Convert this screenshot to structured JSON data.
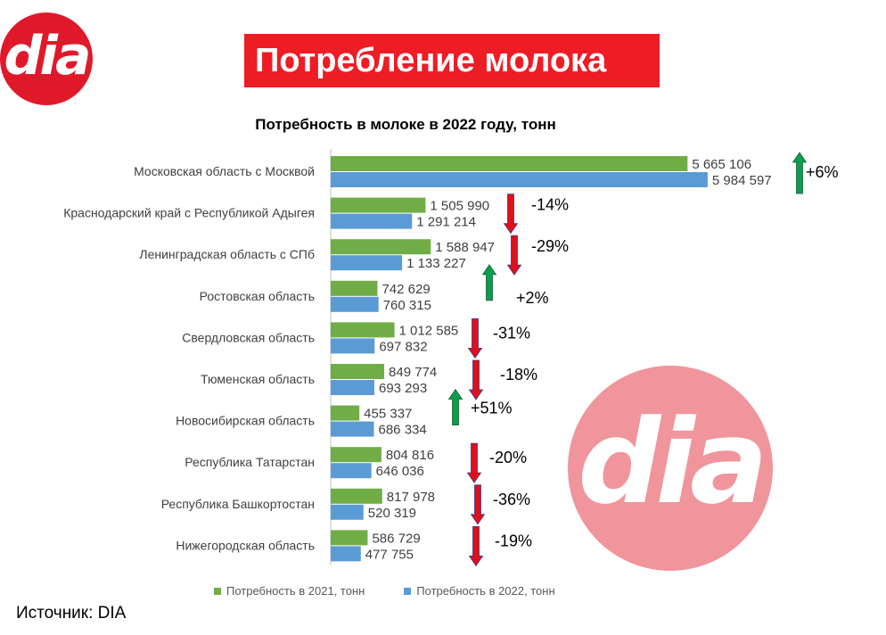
{
  "header": {
    "banner_title": "Потребление молока",
    "logo_text": "dia",
    "source": "Источник: DIA"
  },
  "colors": {
    "series_2021": "#70ad47",
    "series_2022": "#5b9bd5",
    "arrow_up": "#0b9e4c",
    "arrow_down": "#e0101a",
    "banner": "#ee1c25"
  },
  "chart_data": {
    "type": "bar",
    "orientation": "horizontal",
    "title": "Потребность в молоке в 2022 году, тонн",
    "xlim": [
      0,
      6000000
    ],
    "grid": false,
    "legend_position": "bottom",
    "categories": [
      "Московская область с Москвой",
      "Краснодарский край с Республикой Адыгея",
      "Ленинградская область с СПб",
      "Ростовская область",
      "Свердловская область",
      "Тюменская область",
      "Новосибирская область",
      "Республика Татарстан",
      "Республика Башкортостан",
      "Нижегородская область"
    ],
    "series": [
      {
        "name": "Потребность в 2021, тонн",
        "values": [
          5665106,
          1505990,
          1588947,
          742629,
          1012585,
          849774,
          455337,
          804816,
          817978,
          586729
        ],
        "labels": [
          "5 665 106",
          "1 505 990",
          "1 588 947",
          "742 629",
          "1 012 585",
          "849 774",
          "455 337",
          "804 816",
          "817 978",
          "586 729"
        ]
      },
      {
        "name": "Потребность в 2022, тонн",
        "values": [
          5984597,
          1291214,
          1133227,
          760315,
          697832,
          693293,
          686334,
          646036,
          520319,
          477755
        ],
        "labels": [
          "5 984 597",
          "1 291 214",
          "1 133 227",
          "760 315",
          "697 832",
          "693 293",
          "686 334",
          "646 036",
          "520 319",
          "477 755"
        ]
      }
    ],
    "annotations": [
      {
        "text": "+6%",
        "direction": "up"
      },
      {
        "text": "-14%",
        "direction": "down"
      },
      {
        "text": "-29%",
        "direction": "down"
      },
      {
        "text": "+2%",
        "direction": "up"
      },
      {
        "text": "-31%",
        "direction": "down"
      },
      {
        "text": "-18%",
        "direction": "down"
      },
      {
        "text": "+51%",
        "direction": "up"
      },
      {
        "text": "-20%",
        "direction": "down"
      },
      {
        "text": "-36%",
        "direction": "down"
      },
      {
        "text": "-19%",
        "direction": "down"
      }
    ]
  }
}
